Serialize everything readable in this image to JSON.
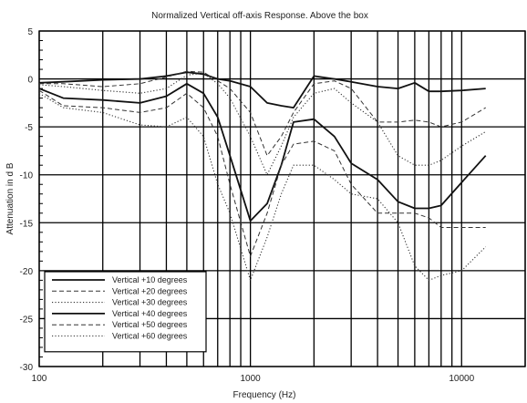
{
  "chart_data": {
    "type": "line",
    "title": "Normalized Vertical off-axis Response. Above the box",
    "xlabel": "Frequency (Hz)",
    "ylabel": "Attenuation in d B",
    "xscale": "log",
    "xlim": [
      100,
      20000
    ],
    "ylim": [
      -30,
      5
    ],
    "xticks": [
      100,
      1000,
      10000
    ],
    "xtick_labels": [
      "100",
      "1000",
      "10000"
    ],
    "yticks": [
      5,
      0,
      -5,
      -10,
      -15,
      -20,
      -25,
      -30
    ],
    "ytick_labels": [
      "5",
      "0",
      "-5",
      "-10",
      "-15",
      "-20",
      "-25",
      "-30"
    ],
    "grid": true,
    "legend_position": "bottom-left",
    "series": [
      {
        "name": "Vertical    +10 degrees",
        "style": "solid-thick",
        "color": "#111111",
        "x": [
          100,
          130,
          200,
          300,
          400,
          500,
          600,
          700,
          800,
          1000,
          1200,
          1400,
          1600,
          2000,
          2500,
          3000,
          4000,
          5000,
          6000,
          7000,
          8000,
          10000,
          13000
        ],
        "y": [
          -0.4,
          -0.3,
          -0.1,
          0.0,
          0.3,
          0.7,
          0.5,
          0.0,
          -0.2,
          -0.8,
          -2.5,
          -2.8,
          -3.0,
          0.3,
          0.0,
          -0.3,
          -0.8,
          -1.0,
          -0.4,
          -1.3,
          -1.3,
          -1.2,
          -1.0
        ]
      },
      {
        "name": "Vertical    +20 degrees",
        "style": "dashed",
        "color": "#333333",
        "x": [
          100,
          130,
          200,
          300,
          400,
          500,
          600,
          700,
          800,
          1000,
          1200,
          1400,
          1600,
          2000,
          2500,
          3000,
          4000,
          5000,
          6000,
          7000,
          8000,
          10000,
          13000
        ],
        "y": [
          -0.5,
          -0.5,
          -0.8,
          -0.5,
          0.2,
          0.8,
          0.7,
          -0.2,
          -1.0,
          -3.5,
          -8.0,
          -6.0,
          -3.5,
          -0.5,
          -0.2,
          -1.0,
          -4.5,
          -4.5,
          -4.3,
          -4.5,
          -5.0,
          -4.5,
          -3.0
        ]
      },
      {
        "name": "Vertical    +30 degrees",
        "style": "dotted",
        "color": "#333333",
        "x": [
          100,
          130,
          200,
          300,
          400,
          500,
          600,
          700,
          800,
          1000,
          1200,
          1400,
          1600,
          2000,
          2500,
          3000,
          4000,
          5000,
          6000,
          7000,
          8000,
          10000,
          13000
        ],
        "y": [
          -0.6,
          -0.8,
          -1.2,
          -1.5,
          -1.0,
          0.4,
          0.6,
          -0.5,
          -2.0,
          -6.0,
          -10.0,
          -7.0,
          -4.0,
          -1.5,
          -1.0,
          -2.5,
          -4.5,
          -8.0,
          -9.0,
          -9.0,
          -8.5,
          -7.0,
          -5.5
        ]
      },
      {
        "name": "Vertical    +40 degrees",
        "style": "solid-thick",
        "color": "#111111",
        "x": [
          100,
          130,
          200,
          300,
          400,
          500,
          600,
          700,
          800,
          1000,
          1200,
          1400,
          1600,
          2000,
          2500,
          3000,
          4000,
          5000,
          6000,
          7000,
          8000,
          10000,
          13000
        ],
        "y": [
          -1.0,
          -2.0,
          -2.2,
          -2.5,
          -1.8,
          -0.5,
          -1.5,
          -4.0,
          -8.0,
          -14.8,
          -13.0,
          -9.0,
          -4.5,
          -4.2,
          -6.0,
          -8.8,
          -10.5,
          -12.8,
          -13.5,
          -13.5,
          -13.2,
          -10.8,
          -8.0
        ]
      },
      {
        "name": "Vertical    +50 degrees",
        "style": "dashed",
        "color": "#333333",
        "x": [
          100,
          130,
          200,
          300,
          400,
          500,
          600,
          700,
          800,
          1000,
          1200,
          1400,
          1600,
          2000,
          2500,
          3000,
          4000,
          5000,
          6000,
          7000,
          8000,
          10000,
          13000
        ],
        "y": [
          -1.2,
          -2.8,
          -3.0,
          -3.5,
          -3.0,
          -1.5,
          -3.0,
          -6.0,
          -11.0,
          -18.5,
          -14.0,
          -9.0,
          -6.8,
          -6.5,
          -7.5,
          -11.0,
          -14.0,
          -14.0,
          -14.0,
          -14.5,
          -15.5,
          -15.5,
          -15.5
        ]
      },
      {
        "name": "Vertical    +60 degrees",
        "style": "dotted",
        "color": "#333333",
        "x": [
          100,
          130,
          200,
          300,
          400,
          500,
          600,
          700,
          800,
          1000,
          1200,
          1400,
          1600,
          2000,
          2500,
          3000,
          4000,
          5000,
          6000,
          7000,
          8000,
          10000,
          13000
        ],
        "y": [
          -1.5,
          -3.0,
          -3.5,
          -4.8,
          -5.0,
          -4.0,
          -6.0,
          -11.0,
          -14.0,
          -21.0,
          -16.5,
          -12.0,
          -9.0,
          -9.0,
          -10.5,
          -12.0,
          -12.5,
          -15.0,
          -19.5,
          -21.0,
          -20.5,
          -20.0,
          -17.5
        ]
      }
    ]
  }
}
